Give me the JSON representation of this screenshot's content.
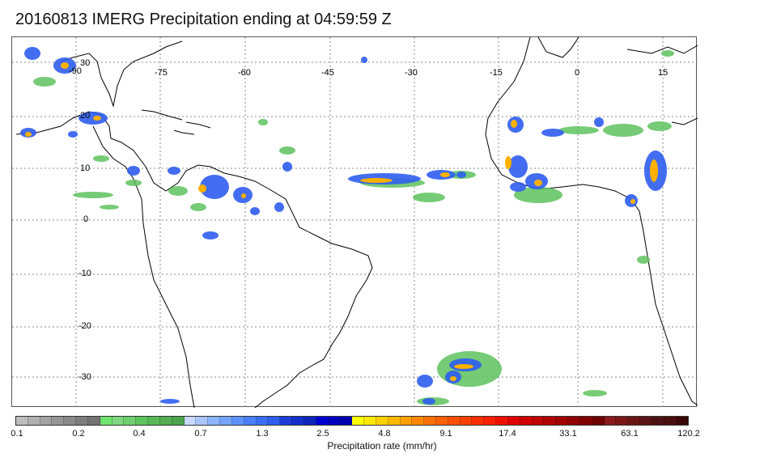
{
  "title": "20160813 IMERG Precipitation ending at 04:59:59 Z",
  "map": {
    "lon_labels": [
      "-90",
      "-75",
      "-60",
      "-45",
      "-30",
      "-15",
      "0",
      "15"
    ],
    "lat_labels": [
      "30",
      "20",
      "10",
      "0",
      "-10",
      "-20",
      "-30"
    ]
  },
  "colorbar": {
    "label": "Precipitation rate (mm/hr)",
    "ticks": [
      "0.1",
      "0.2",
      "0.4",
      "0.7",
      "1.3",
      "2.5",
      "4.8",
      "9.1",
      "17.4",
      "33.1",
      "63.1",
      "120.2"
    ],
    "colors": [
      "#bdbdbd",
      "#b0b0b0",
      "#a3a3a3",
      "#969696",
      "#8a8a8a",
      "#7e7e7e",
      "#737373",
      "#6ee36e",
      "#7fd87f",
      "#6ecf6e",
      "#5ec45e",
      "#57b957",
      "#52ad52",
      "#4ba34b",
      "#c8d8ff",
      "#a9c6ff",
      "#8cb4ff",
      "#74a3ff",
      "#5f92ff",
      "#4b80ff",
      "#386ff2",
      "#2f5ef0",
      "#1e3cd6",
      "#1530c8",
      "#0c26bb",
      "#0000d0",
      "#0000c0",
      "#0000b0",
      "#ffff00",
      "#ffe800",
      "#ffd000",
      "#ffb800",
      "#ffa000",
      "#ff8800",
      "#ff7000",
      "#ff6000",
      "#ff5000",
      "#ff4000",
      "#ff3000",
      "#ff2000",
      "#f01000",
      "#e00000",
      "#d00000",
      "#c00000",
      "#b00000",
      "#a00000",
      "#900000",
      "#800000",
      "#700000",
      "#8b1a1a",
      "#7a1818",
      "#6a1616",
      "#5a1414",
      "#4a1212",
      "#4a0e0e",
      "#3a0808"
    ]
  }
}
